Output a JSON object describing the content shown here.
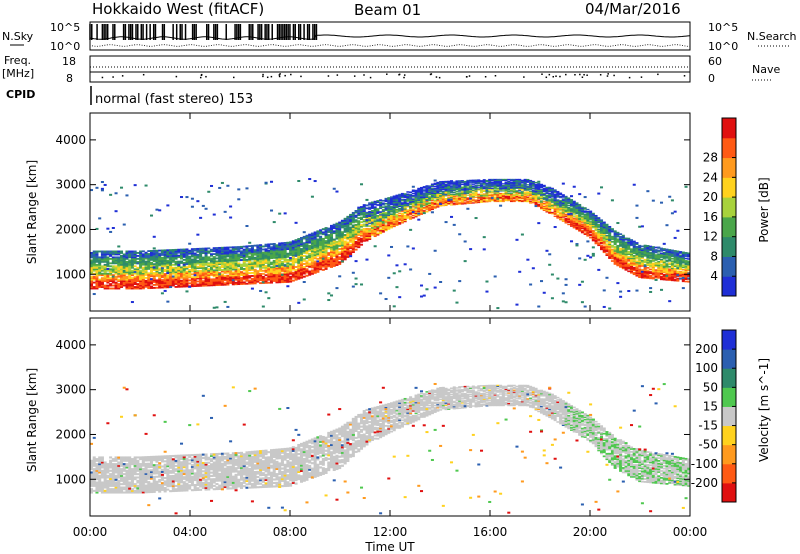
{
  "header": {
    "station": "Hokkaido West (fitACF)",
    "beam": "Beam 01",
    "date": "04/Mar/2016"
  },
  "top_panels": {
    "nsky_label": "N.Sky",
    "nsky_ticks": [
      "10^5",
      "10^0"
    ],
    "nsearch_label": "N.Search",
    "nsearch_ticks": [
      "10^5",
      "10^0"
    ],
    "freq_label_1": "Freq.",
    "freq_label_2": "[MHz]",
    "freq_ticks": [
      "18",
      "8"
    ],
    "nave_label": "Nave",
    "nave_ticks": [
      "60",
      "0"
    ],
    "cpid_label": "CPID",
    "cpid_text": "normal (fast stereo) 153"
  },
  "chart_data": [
    {
      "type": "heatmap",
      "name": "power",
      "ylabel": "Slant Range [km]",
      "ylim": [
        180,
        4600
      ],
      "yticks": [
        "1000",
        "2000",
        "3000",
        "4000"
      ],
      "xlim_hours": [
        0,
        24
      ],
      "colorbar_label": "Power [dB]",
      "colorbar_ticks": [
        "4",
        "8",
        "12",
        "16",
        "20",
        "24",
        "28"
      ],
      "colorbar_colors": [
        "#1f2fd6",
        "#2b5fb0",
        "#2e8a6a",
        "#4aa64a",
        "#a8d23c",
        "#ffd21e",
        "#ff9a1e",
        "#ff5a14",
        "#e01010"
      ],
      "echo_band": [
        {
          "t": 0,
          "lower": 750,
          "upper": 1450
        },
        {
          "t": 2,
          "lower": 750,
          "upper": 1450
        },
        {
          "t": 4,
          "lower": 800,
          "upper": 1500
        },
        {
          "t": 6,
          "lower": 850,
          "upper": 1550
        },
        {
          "t": 8,
          "lower": 900,
          "upper": 1650
        },
        {
          "t": 10,
          "lower": 1300,
          "upper": 2100
        },
        {
          "t": 11,
          "lower": 1800,
          "upper": 2500
        },
        {
          "t": 12,
          "lower": 2100,
          "upper": 2650
        },
        {
          "t": 14,
          "lower": 2600,
          "upper": 3000
        },
        {
          "t": 16,
          "lower": 2700,
          "upper": 3050
        },
        {
          "t": 17.5,
          "lower": 2700,
          "upper": 3050
        },
        {
          "t": 18.5,
          "lower": 2400,
          "upper": 2850
        },
        {
          "t": 20,
          "lower": 1900,
          "upper": 2350
        },
        {
          "t": 21,
          "lower": 1300,
          "upper": 1900
        },
        {
          "t": 22,
          "lower": 1000,
          "upper": 1600
        },
        {
          "t": 24,
          "lower": 900,
          "upper": 1400
        }
      ]
    },
    {
      "type": "heatmap",
      "name": "velocity",
      "ylabel": "Slant Range [km]",
      "ylim": [
        180,
        4600
      ],
      "yticks": [
        "1000",
        "2000",
        "3000",
        "4000"
      ],
      "xlim_hours": [
        0,
        24
      ],
      "xticks": [
        "00:00",
        "04:00",
        "08:00",
        "12:00",
        "16:00",
        "20:00",
        "00:00"
      ],
      "xlabel": "Time UT",
      "colorbar_label": "Velocity [m s^-1]",
      "colorbar_ticks": [
        "200",
        "100",
        "50",
        "15",
        "-15",
        "-50",
        "-100",
        "-200"
      ],
      "colorbar_colors": [
        "#1f2fd6",
        "#2b5fb0",
        "#2e8a6a",
        "#4fc84f",
        "#c8c8c8",
        "#ffd21e",
        "#ff9a1e",
        "#ff5a14",
        "#e01010"
      ]
    }
  ]
}
